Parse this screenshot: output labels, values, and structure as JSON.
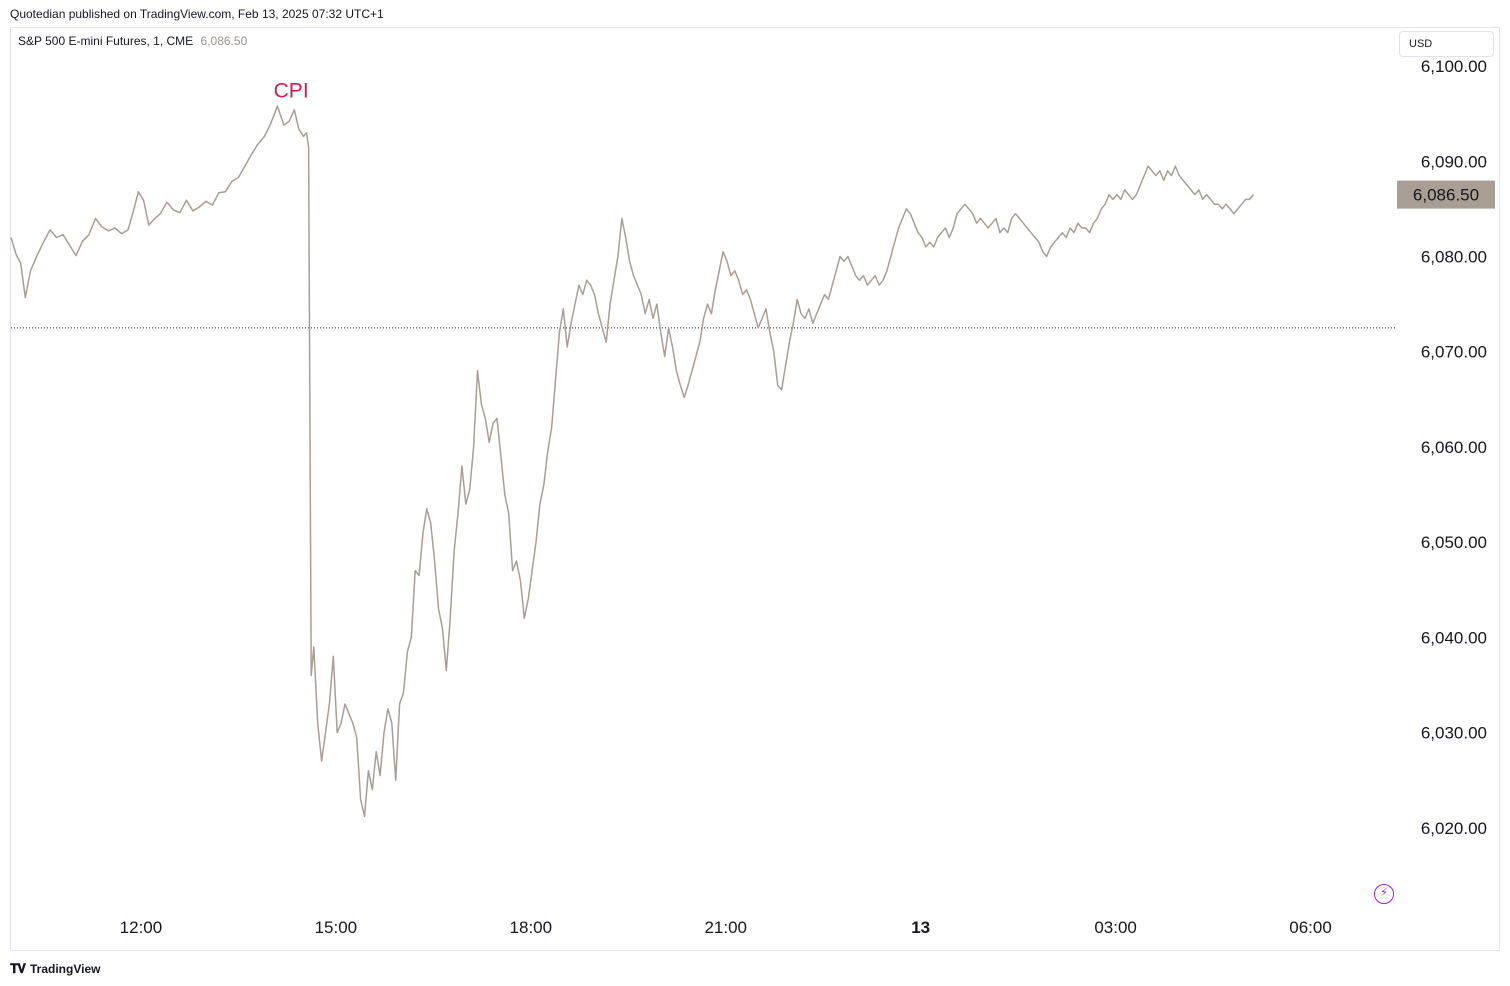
{
  "header": {
    "published": "Quotedian published on TradingView.com, Feb 13, 2025 07:32 UTC+1"
  },
  "legend": {
    "symbol": "S&P 500 E-mini Futures, 1, CME",
    "last": "6,086.50"
  },
  "currency": "USD",
  "brand": "TradingView",
  "colors": {
    "line": "#a89e94",
    "price_label_bg": "#a89e94",
    "annotation": "#cc1f59",
    "grid_text": "#131722"
  },
  "chart_data": {
    "type": "line",
    "x_unit": "hours",
    "x_ticks": [
      {
        "label": "12:00",
        "t": 12,
        "bold": false
      },
      {
        "label": "15:00",
        "t": 15,
        "bold": false
      },
      {
        "label": "18:00",
        "t": 18,
        "bold": false
      },
      {
        "label": "21:00",
        "t": 21,
        "bold": false
      },
      {
        "label": "13",
        "t": 24,
        "bold": true
      },
      {
        "label": "03:00",
        "t": 27,
        "bold": false
      },
      {
        "label": "06:00",
        "t": 30,
        "bold": false
      }
    ],
    "y_ticks": [
      6020,
      6030,
      6040,
      6050,
      6060,
      6070,
      6080,
      6090,
      6100
    ],
    "y_tick_labels": [
      "6,020.00",
      "6,030.00",
      "6,040.00",
      "6,050.00",
      "6,060.00",
      "6,070.00",
      "6,080.00",
      "6,090.00",
      "6,100.00"
    ],
    "ylim": [
      6012,
      6104
    ],
    "xlim": [
      10.0,
      31.3
    ],
    "reference_price": 6072.5,
    "last_price": 6086.5,
    "last_price_label": "6,086.50",
    "annotation": {
      "text": "CPI",
      "t": 14.35,
      "price": 6096.5
    },
    "points": [
      [
        10.0,
        6082.0
      ],
      [
        10.08,
        6080.2
      ],
      [
        10.15,
        6079.3
      ],
      [
        10.22,
        6075.7
      ],
      [
        10.3,
        6078.5
      ],
      [
        10.4,
        6080.1
      ],
      [
        10.5,
        6081.5
      ],
      [
        10.6,
        6082.8
      ],
      [
        10.7,
        6082.0
      ],
      [
        10.8,
        6082.3
      ],
      [
        10.9,
        6081.2
      ],
      [
        11.0,
        6080.1
      ],
      [
        11.1,
        6081.6
      ],
      [
        11.2,
        6082.3
      ],
      [
        11.3,
        6084.0
      ],
      [
        11.4,
        6083.1
      ],
      [
        11.5,
        6082.7
      ],
      [
        11.6,
        6083.0
      ],
      [
        11.7,
        6082.4
      ],
      [
        11.8,
        6082.8
      ],
      [
        11.88,
        6084.7
      ],
      [
        11.96,
        6086.8
      ],
      [
        12.04,
        6085.9
      ],
      [
        12.12,
        6083.3
      ],
      [
        12.2,
        6083.9
      ],
      [
        12.3,
        6084.5
      ],
      [
        12.4,
        6085.7
      ],
      [
        12.5,
        6084.9
      ],
      [
        12.6,
        6084.6
      ],
      [
        12.7,
        6085.9
      ],
      [
        12.8,
        6084.8
      ],
      [
        12.9,
        6085.2
      ],
      [
        13.0,
        6085.8
      ],
      [
        13.1,
        6085.4
      ],
      [
        13.2,
        6086.7
      ],
      [
        13.3,
        6086.8
      ],
      [
        13.4,
        6087.9
      ],
      [
        13.5,
        6088.3
      ],
      [
        13.6,
        6089.5
      ],
      [
        13.7,
        6090.7
      ],
      [
        13.8,
        6091.8
      ],
      [
        13.9,
        6092.6
      ],
      [
        14.0,
        6094.0
      ],
      [
        14.1,
        6095.8
      ],
      [
        14.2,
        6093.8
      ],
      [
        14.28,
        6094.2
      ],
      [
        14.36,
        6095.4
      ],
      [
        14.43,
        6093.4
      ],
      [
        14.5,
        6092.6
      ],
      [
        14.55,
        6093.0
      ],
      [
        14.58,
        6091.5
      ],
      [
        14.62,
        6036.0
      ],
      [
        14.66,
        6039.0
      ],
      [
        14.72,
        6031.0
      ],
      [
        14.78,
        6027.0
      ],
      [
        14.84,
        6030.0
      ],
      [
        14.9,
        6033.0
      ],
      [
        14.96,
        6038.0
      ],
      [
        15.02,
        6030.0
      ],
      [
        15.08,
        6031.0
      ],
      [
        15.14,
        6033.0
      ],
      [
        15.2,
        6032.0
      ],
      [
        15.26,
        6031.0
      ],
      [
        15.32,
        6029.5
      ],
      [
        15.38,
        6023.0
      ],
      [
        15.44,
        6021.2
      ],
      [
        15.5,
        6026.0
      ],
      [
        15.56,
        6024.0
      ],
      [
        15.62,
        6028.0
      ],
      [
        15.68,
        6025.5
      ],
      [
        15.74,
        6030.0
      ],
      [
        15.8,
        6032.5
      ],
      [
        15.86,
        6031.0
      ],
      [
        15.92,
        6025.0
      ],
      [
        15.98,
        6033.0
      ],
      [
        16.04,
        6034.2
      ],
      [
        16.1,
        6038.5
      ],
      [
        16.16,
        6040.0
      ],
      [
        16.22,
        6047.0
      ],
      [
        16.28,
        6046.5
      ],
      [
        16.34,
        6051.0
      ],
      [
        16.4,
        6053.5
      ],
      [
        16.46,
        6052.0
      ],
      [
        16.52,
        6048.0
      ],
      [
        16.58,
        6043.0
      ],
      [
        16.64,
        6041.0
      ],
      [
        16.7,
        6036.5
      ],
      [
        16.76,
        6042.0
      ],
      [
        16.82,
        6049.0
      ],
      [
        16.88,
        6053.0
      ],
      [
        16.94,
        6058.0
      ],
      [
        17.0,
        6054.0
      ],
      [
        17.06,
        6055.5
      ],
      [
        17.12,
        6060.0
      ],
      [
        17.18,
        6068.0
      ],
      [
        17.24,
        6064.5
      ],
      [
        17.3,
        6063.0
      ],
      [
        17.36,
        6060.5
      ],
      [
        17.42,
        6062.5
      ],
      [
        17.48,
        6063.0
      ],
      [
        17.54,
        6059.0
      ],
      [
        17.6,
        6055.0
      ],
      [
        17.66,
        6053.0
      ],
      [
        17.72,
        6047.0
      ],
      [
        17.78,
        6048.0
      ],
      [
        17.84,
        6046.0
      ],
      [
        17.9,
        6042.0
      ],
      [
        17.96,
        6044.0
      ],
      [
        18.02,
        6047.0
      ],
      [
        18.08,
        6050.0
      ],
      [
        18.14,
        6054.0
      ],
      [
        18.2,
        6056.0
      ],
      [
        18.26,
        6059.5
      ],
      [
        18.32,
        6062.0
      ],
      [
        18.38,
        6067.0
      ],
      [
        18.44,
        6072.0
      ],
      [
        18.5,
        6074.5
      ],
      [
        18.56,
        6070.5
      ],
      [
        18.62,
        6073.0
      ],
      [
        18.68,
        6075.0
      ],
      [
        18.74,
        6077.0
      ],
      [
        18.8,
        6076.0
      ],
      [
        18.86,
        6077.5
      ],
      [
        18.92,
        6077.0
      ],
      [
        18.98,
        6076.0
      ],
      [
        19.04,
        6074.0
      ],
      [
        19.1,
        6072.5
      ],
      [
        19.16,
        6071.0
      ],
      [
        19.22,
        6075.0
      ],
      [
        19.28,
        6077.5
      ],
      [
        19.34,
        6080.0
      ],
      [
        19.4,
        6084.0
      ],
      [
        19.46,
        6082.0
      ],
      [
        19.52,
        6079.5
      ],
      [
        19.58,
        6078.0
      ],
      [
        19.64,
        6077.0
      ],
      [
        19.7,
        6076.0
      ],
      [
        19.76,
        6074.0
      ],
      [
        19.82,
        6075.5
      ],
      [
        19.88,
        6073.5
      ],
      [
        19.94,
        6075.0
      ],
      [
        20.0,
        6072.0
      ],
      [
        20.06,
        6069.5
      ],
      [
        20.12,
        6072.5
      ],
      [
        20.18,
        6070.5
      ],
      [
        20.24,
        6068.0
      ],
      [
        20.3,
        6066.5
      ],
      [
        20.36,
        6065.2
      ],
      [
        20.42,
        6066.5
      ],
      [
        20.48,
        6068.0
      ],
      [
        20.54,
        6069.5
      ],
      [
        20.6,
        6071.0
      ],
      [
        20.66,
        6073.5
      ],
      [
        20.72,
        6075.0
      ],
      [
        20.78,
        6074.0
      ],
      [
        20.84,
        6076.5
      ],
      [
        20.9,
        6078.5
      ],
      [
        20.96,
        6080.5
      ],
      [
        21.02,
        6079.5
      ],
      [
        21.08,
        6078.0
      ],
      [
        21.14,
        6078.5
      ],
      [
        21.2,
        6077.5
      ],
      [
        21.26,
        6076.0
      ],
      [
        21.32,
        6076.5
      ],
      [
        21.38,
        6075.5
      ],
      [
        21.44,
        6074.0
      ],
      [
        21.5,
        6072.5
      ],
      [
        21.56,
        6073.5
      ],
      [
        21.62,
        6074.5
      ],
      [
        21.68,
        6072.0
      ],
      [
        21.74,
        6070.0
      ],
      [
        21.8,
        6066.5
      ],
      [
        21.86,
        6066.0
      ],
      [
        21.92,
        6068.5
      ],
      [
        21.98,
        6071.0
      ],
      [
        22.04,
        6073.0
      ],
      [
        22.1,
        6075.5
      ],
      [
        22.16,
        6074.0
      ],
      [
        22.22,
        6073.5
      ],
      [
        22.28,
        6074.5
      ],
      [
        22.34,
        6073.0
      ],
      [
        22.4,
        6074.0
      ],
      [
        22.46,
        6075.0
      ],
      [
        22.52,
        6076.0
      ],
      [
        22.58,
        6075.5
      ],
      [
        22.64,
        6077.0
      ],
      [
        22.7,
        6078.5
      ],
      [
        22.76,
        6080.0
      ],
      [
        22.82,
        6079.5
      ],
      [
        22.88,
        6080.0
      ],
      [
        22.94,
        6079.0
      ],
      [
        23.0,
        6078.0
      ],
      [
        23.06,
        6077.5
      ],
      [
        23.12,
        6078.0
      ],
      [
        23.18,
        6077.0
      ],
      [
        23.24,
        6077.5
      ],
      [
        23.3,
        6078.0
      ],
      [
        23.36,
        6077.0
      ],
      [
        23.42,
        6077.5
      ],
      [
        23.48,
        6078.5
      ],
      [
        23.54,
        6080.0
      ],
      [
        23.6,
        6081.5
      ],
      [
        23.66,
        6083.0
      ],
      [
        23.72,
        6084.0
      ],
      [
        23.78,
        6085.0
      ],
      [
        23.84,
        6084.5
      ],
      [
        23.9,
        6083.5
      ],
      [
        23.96,
        6082.5
      ],
      [
        24.02,
        6082.0
      ],
      [
        24.08,
        6081.0
      ],
      [
        24.14,
        6081.5
      ],
      [
        24.2,
        6081.0
      ],
      [
        24.26,
        6082.0
      ],
      [
        24.32,
        6082.5
      ],
      [
        24.38,
        6083.0
      ],
      [
        24.44,
        6082.0
      ],
      [
        24.5,
        6083.0
      ],
      [
        24.56,
        6084.5
      ],
      [
        24.62,
        6085.0
      ],
      [
        24.68,
        6085.5
      ],
      [
        24.74,
        6085.0
      ],
      [
        24.8,
        6084.5
      ],
      [
        24.86,
        6083.5
      ],
      [
        24.92,
        6084.0
      ],
      [
        24.98,
        6083.5
      ],
      [
        25.04,
        6083.0
      ],
      [
        25.1,
        6083.5
      ],
      [
        25.16,
        6084.0
      ],
      [
        25.22,
        6082.5
      ],
      [
        25.28,
        6083.0
      ],
      [
        25.34,
        6082.5
      ],
      [
        25.4,
        6084.0
      ],
      [
        25.46,
        6084.5
      ],
      [
        25.52,
        6084.0
      ],
      [
        25.58,
        6083.5
      ],
      [
        25.64,
        6083.0
      ],
      [
        25.7,
        6082.5
      ],
      [
        25.76,
        6082.0
      ],
      [
        25.82,
        6081.5
      ],
      [
        25.88,
        6080.5
      ],
      [
        25.94,
        6080.0
      ],
      [
        26.0,
        6081.0
      ],
      [
        26.06,
        6081.5
      ],
      [
        26.12,
        6082.0
      ],
      [
        26.18,
        6082.5
      ],
      [
        26.24,
        6082.0
      ],
      [
        26.3,
        6083.0
      ],
      [
        26.36,
        6082.5
      ],
      [
        26.42,
        6083.5
      ],
      [
        26.48,
        6083.0
      ],
      [
        26.54,
        6083.0
      ],
      [
        26.6,
        6082.5
      ],
      [
        26.66,
        6083.5
      ],
      [
        26.72,
        6084.0
      ],
      [
        26.78,
        6085.0
      ],
      [
        26.84,
        6085.5
      ],
      [
        26.9,
        6086.5
      ],
      [
        26.96,
        6086.0
      ],
      [
        27.02,
        6086.5
      ],
      [
        27.08,
        6086.0
      ],
      [
        27.14,
        6087.0
      ],
      [
        27.2,
        6086.5
      ],
      [
        27.26,
        6086.0
      ],
      [
        27.32,
        6086.5
      ],
      [
        27.38,
        6087.5
      ],
      [
        27.44,
        6088.5
      ],
      [
        27.5,
        6089.5
      ],
      [
        27.56,
        6089.0
      ],
      [
        27.62,
        6088.5
      ],
      [
        27.68,
        6089.0
      ],
      [
        27.74,
        6088.0
      ],
      [
        27.8,
        6089.0
      ],
      [
        27.86,
        6088.5
      ],
      [
        27.92,
        6089.5
      ],
      [
        27.98,
        6088.5
      ],
      [
        28.04,
        6088.0
      ],
      [
        28.1,
        6087.5
      ],
      [
        28.16,
        6087.0
      ],
      [
        28.22,
        6086.5
      ],
      [
        28.28,
        6087.0
      ],
      [
        28.34,
        6086.0
      ],
      [
        28.4,
        6086.5
      ],
      [
        28.46,
        6086.0
      ],
      [
        28.52,
        6085.5
      ],
      [
        28.58,
        6085.5
      ],
      [
        28.64,
        6085.0
      ],
      [
        28.7,
        6085.5
      ],
      [
        28.76,
        6085.0
      ],
      [
        28.82,
        6084.5
      ],
      [
        28.88,
        6085.0
      ],
      [
        28.94,
        6085.5
      ],
      [
        29.0,
        6086.0
      ],
      [
        29.06,
        6086.0
      ],
      [
        29.12,
        6086.5
      ]
    ]
  }
}
